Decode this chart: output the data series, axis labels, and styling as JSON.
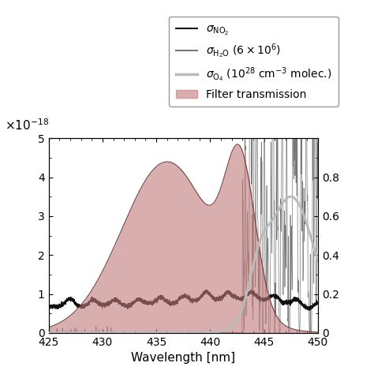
{
  "xlabel": "Wavelength [nm]",
  "ylabel_left": "$\\times10^{-18}$",
  "xlim": [
    425,
    450
  ],
  "ylim_left": [
    0,
    5
  ],
  "ylim_right": [
    0,
    1
  ],
  "left_yticks": [
    0,
    1,
    2,
    3,
    4,
    5
  ],
  "right_yticks": [
    0.0,
    0.2,
    0.4,
    0.6,
    0.8
  ],
  "right_yticklabels": [
    "0",
    "0.2",
    "0.4",
    "0.6",
    "0.8"
  ],
  "legend_labels": [
    "$\\sigma_{\\mathrm{NO_2}}$",
    "$\\sigma_{\\mathrm{H_2O}}$ $(6 \\times 10^6)$",
    "$\\sigma_{\\mathrm{O_4}}$ $(10^{28}$ cm$^{-3}$ molec.)",
    "Filter transmission"
  ],
  "no2_color": "#111111",
  "h2o_color": "#777777",
  "o4_color": "#bbbbbb",
  "filter_color": "#c07878",
  "filter_alpha": 0.6,
  "background_color": "#ffffff",
  "font_size": 11,
  "legend_fontsize": 10
}
